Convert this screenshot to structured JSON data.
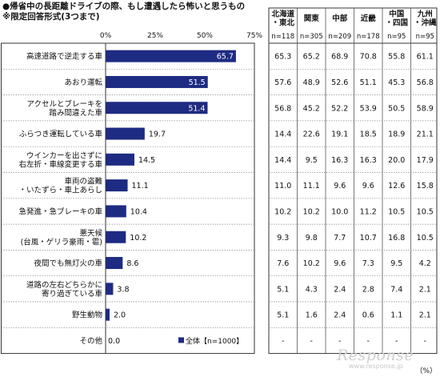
{
  "header": {
    "title": "●帰省中の長距離ドライブの際、もし遭遇したら怖いと思うもの",
    "subtitle": "※限定回答形式(3つまで)"
  },
  "watermark": {
    "brand": "Response",
    "sub": "www.response.jp"
  },
  "chart_data": {
    "type": "bar",
    "orientation": "horizontal",
    "xlim": [
      0,
      75
    ],
    "xticks": [
      "0%",
      "25%",
      "50%",
      "75%"
    ],
    "legend": "■全体【n=1000】",
    "legend_position": "bottom-right",
    "bar_color": "#1e2b82",
    "unit_label": "（%）",
    "categories": [
      "高速道路で逆走する車",
      "あおり運転",
      "アクセルとブレーキを\n踏み間違えた車",
      "ふらつき運転している車",
      "ウインカーを出さずに\n右左折・車線変更する車",
      "車両の盗難\n・いたずら・車上あらし",
      "急発進・急ブレーキの車",
      "悪天候\n(台風・ゲリラ豪雨・雹)",
      "夜間でも無灯火の車",
      "道路の左右どちらかに\n寄り過ぎている車",
      "野生動物",
      "その他"
    ],
    "values": [
      65.7,
      51.5,
      51.4,
      19.7,
      14.5,
      11.1,
      10.4,
      10.2,
      8.6,
      3.8,
      2.0,
      0.0
    ],
    "value_labels": [
      "65.7",
      "51.5",
      "51.4",
      "19.7",
      "14.5",
      "11.1",
      "10.4",
      "10.2",
      "8.6",
      "3.8",
      "2.0",
      "0.0"
    ],
    "table": {
      "columns": [
        {
          "name": "北海道\n・東北",
          "n": "n=118"
        },
        {
          "name": "関東",
          "n": "n=305"
        },
        {
          "name": "中部",
          "n": "n=209"
        },
        {
          "name": "近畿",
          "n": "n=178"
        },
        {
          "name": "中国\n・四国",
          "n": "n=95"
        },
        {
          "name": "九州\n・沖縄",
          "n": "n=95"
        }
      ],
      "rows": [
        [
          "65.3",
          "65.2",
          "68.9",
          "70.8",
          "55.8",
          "61.1"
        ],
        [
          "57.6",
          "48.9",
          "52.6",
          "51.1",
          "45.3",
          "56.8"
        ],
        [
          "56.8",
          "45.2",
          "52.2",
          "53.9",
          "50.5",
          "58.9"
        ],
        [
          "14.4",
          "22.6",
          "19.1",
          "18.5",
          "18.9",
          "21.1"
        ],
        [
          "14.4",
          "9.5",
          "16.3",
          "16.3",
          "20.0",
          "17.9"
        ],
        [
          "11.0",
          "11.1",
          "9.6",
          "9.6",
          "12.6",
          "15.8"
        ],
        [
          "10.2",
          "10.2",
          "10.0",
          "11.2",
          "10.5",
          "10.5"
        ],
        [
          "9.3",
          "9.8",
          "7.7",
          "10.7",
          "16.8",
          "10.5"
        ],
        [
          "7.6",
          "10.2",
          "9.6",
          "7.3",
          "9.5",
          "4.2"
        ],
        [
          "5.1",
          "4.3",
          "2.4",
          "2.8",
          "7.4",
          "2.1"
        ],
        [
          "5.1",
          "1.6",
          "2.4",
          "0.6",
          "1.1",
          "2.1"
        ],
        [
          "-",
          "-",
          "-",
          "-",
          "-",
          "-"
        ]
      ]
    }
  }
}
